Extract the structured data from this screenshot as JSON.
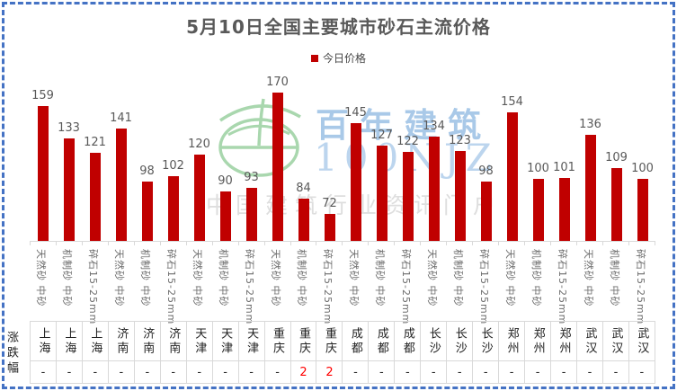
{
  "title": "5月10日全国主要城市砂石主流价格",
  "legend": {
    "label": "今日价格",
    "swatch_color": "#C00000"
  },
  "watermark": {
    "logo": "bainian-jianzhu-logo",
    "brand": "百年建筑",
    "brand_latin": "100NJZ",
    "tagline": "中国建筑行业资讯门户",
    "logo_color": "#A9D7AE",
    "brand_color": "#A9C9E8",
    "tagline_color": "#DEDEDE"
  },
  "table": {
    "row_label": "涨跌幅"
  },
  "frame": {
    "border_color": "#4472C4"
  },
  "chart_data": {
    "type": "bar",
    "title": "5月10日全国主要城市砂石主流价格",
    "series": [
      {
        "name": "今日价格",
        "color": "#C00000",
        "values": [
          159,
          133,
          121,
          141,
          98,
          102,
          120,
          90,
          93,
          170,
          84,
          72,
          145,
          127,
          122,
          134,
          123,
          98,
          154,
          100,
          101,
          136,
          109,
          100
        ]
      }
    ],
    "categories_spec": [
      "天然砂 中砂",
      "机制砂 中砂",
      "碎石15-25mm",
      "天然砂 中砂",
      "机制砂 中砂",
      "碎石15-25mm",
      "天然砂 中砂",
      "机制砂 中砂",
      "碎石15-25mm",
      "天然砂 中砂",
      "机制砂 中砂",
      "碎石15-25mm",
      "天然砂 中砂",
      "机制砂 中砂",
      "碎石15-25mm",
      "天然砂 中砂",
      "机制砂 中砂",
      "碎石15-25mm",
      "天然砂 中砂",
      "机制砂 中砂",
      "碎石15-25mm",
      "天然砂 中砂",
      "机制砂 中砂",
      "碎石15-25mm"
    ],
    "categories_city": [
      "上海",
      "上海",
      "上海",
      "济南",
      "济南",
      "济南",
      "天津",
      "天津",
      "天津",
      "重庆",
      "重庆",
      "重庆",
      "成都",
      "成都",
      "成都",
      "长沙",
      "长沙",
      "长沙",
      "郑州",
      "郑州",
      "郑州",
      "武汉",
      "武汉",
      "武汉"
    ],
    "changes": [
      "-",
      "-",
      "-",
      "-",
      "-",
      "-",
      "-",
      "-",
      "-",
      "-",
      "2",
      "2",
      "-",
      "-",
      "-",
      "-",
      "-",
      "-",
      "-",
      "-",
      "-",
      "-",
      "-",
      "-"
    ],
    "change_highlight_color": "#FF0000",
    "ylim": [
      50,
      183
    ],
    "grid": false,
    "legend_position": "top-center",
    "value_labels": true
  }
}
